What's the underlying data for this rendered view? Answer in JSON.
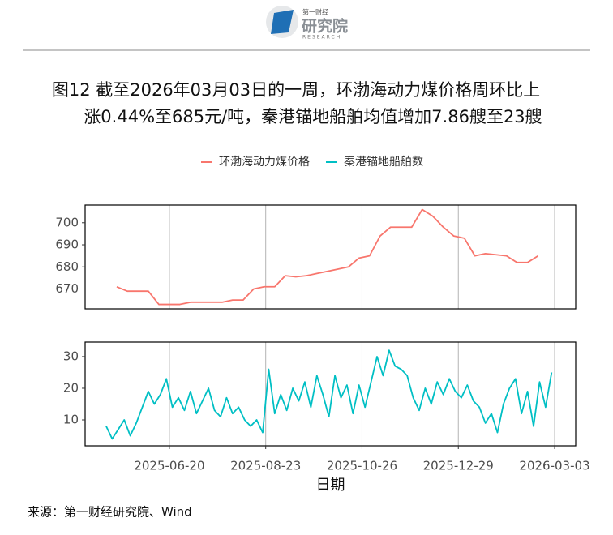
{
  "header": {
    "logo": [
      "第一财经",
      "研究院",
      "RESEARCH"
    ],
    "title": [
      "图12  截至2026年03月03日的一周，环渤海动力煤价格周环比上",
      "涨0.44%至685元/吨，秦港锚地船舶均值增加7.86艘至23艘"
    ]
  },
  "chart_data": [
    {
      "type": "line",
      "x": [
        "2025-05-16",
        "2025-05-23",
        "2025-05-30",
        "2025-06-06",
        "2025-06-13",
        "2025-06-20",
        "2025-06-27",
        "2025-07-04",
        "2025-07-11",
        "2025-07-18",
        "2025-07-25",
        "2025-08-01",
        "2025-08-08",
        "2025-08-15",
        "2025-08-22",
        "2025-08-29",
        "2025-09-05",
        "2025-09-12",
        "2025-09-19",
        "2025-09-26",
        "2025-10-03",
        "2025-10-10",
        "2025-10-17",
        "2025-10-24",
        "2025-10-31",
        "2025-11-07",
        "2025-11-14",
        "2025-11-21",
        "2025-11-28",
        "2025-12-05",
        "2025-12-12",
        "2025-12-19",
        "2025-12-26",
        "2026-01-02",
        "2026-01-09",
        "2026-01-16",
        "2026-01-23",
        "2026-01-30",
        "2026-02-06",
        "2026-02-13",
        "2026-02-20"
      ],
      "series": [
        {
          "name": "环渤海动力煤价格",
          "color": "#F8766D",
          "values": [
            671,
            669,
            669,
            669,
            663,
            663,
            663,
            664,
            664,
            664,
            664,
            665,
            665,
            670,
            671,
            671,
            676,
            675.5,
            676,
            677,
            678,
            679,
            680,
            684,
            685,
            694,
            698,
            698,
            698,
            706,
            703,
            698,
            694,
            693,
            685,
            686,
            685.5,
            685,
            682,
            682,
            685
          ]
        }
      ],
      "xlim": [
        "2025-04-25",
        "2026-03-17"
      ],
      "ylim": [
        661,
        708
      ],
      "yticks": [
        670,
        680,
        690,
        700
      ],
      "grid": true
    },
    {
      "type": "line",
      "x": [
        "2025-05-09",
        "2025-05-13",
        "2025-05-17",
        "2025-05-21",
        "2025-05-25",
        "2025-05-29",
        "2025-06-02",
        "2025-06-06",
        "2025-06-10",
        "2025-06-14",
        "2025-06-18",
        "2025-06-22",
        "2025-06-26",
        "2025-06-30",
        "2025-07-04",
        "2025-07-08",
        "2025-07-12",
        "2025-07-16",
        "2025-07-20",
        "2025-07-24",
        "2025-07-28",
        "2025-08-01",
        "2025-08-05",
        "2025-08-09",
        "2025-08-13",
        "2025-08-17",
        "2025-08-21",
        "2025-08-25",
        "2025-08-29",
        "2025-09-02",
        "2025-09-06",
        "2025-09-10",
        "2025-09-14",
        "2025-09-18",
        "2025-09-22",
        "2025-09-26",
        "2025-09-30",
        "2025-10-04",
        "2025-10-08",
        "2025-10-12",
        "2025-10-16",
        "2025-10-20",
        "2025-10-24",
        "2025-10-28",
        "2025-11-01",
        "2025-11-05",
        "2025-11-09",
        "2025-11-13",
        "2025-11-17",
        "2025-11-21",
        "2025-11-25",
        "2025-11-29",
        "2025-12-03",
        "2025-12-07",
        "2025-12-11",
        "2025-12-15",
        "2025-12-19",
        "2025-12-23",
        "2025-12-27",
        "2025-12-31",
        "2026-01-04",
        "2026-01-08",
        "2026-01-12",
        "2026-01-16",
        "2026-01-20",
        "2026-01-24",
        "2026-01-28",
        "2026-02-01",
        "2026-02-05",
        "2026-02-09",
        "2026-02-13",
        "2026-02-17",
        "2026-02-21",
        "2026-02-25",
        "2026-03-01"
      ],
      "series": [
        {
          "name": "秦港锚地船舶数",
          "color": "#00BFC4",
          "values": [
            8,
            4,
            7,
            10,
            5,
            9,
            14,
            19,
            15,
            18,
            23,
            14,
            17,
            13,
            19,
            12,
            16,
            20,
            13,
            11,
            17,
            12,
            14,
            10,
            8,
            10,
            6,
            26,
            12,
            18,
            13,
            20,
            16,
            22,
            14,
            24,
            18,
            11,
            24,
            17,
            21,
            12,
            21,
            14,
            22,
            30,
            24,
            32,
            27,
            26,
            24,
            17,
            13,
            20,
            15,
            22,
            18,
            23,
            19,
            17,
            21,
            16,
            14,
            9,
            12,
            6,
            15,
            20,
            23,
            12,
            19,
            8,
            22,
            14,
            25
          ]
        }
      ],
      "xlim": [
        "2025-04-25",
        "2026-03-17"
      ],
      "xticks": [
        "2025-06-20",
        "2025-08-23",
        "2025-10-26",
        "2025-12-29",
        "2026-03-03"
      ],
      "xlabel": "日期",
      "ylim": [
        1.8,
        34.6
      ],
      "yticks": [
        10,
        20,
        30
      ],
      "grid": true
    }
  ],
  "source": "来源：第一财经研究院、Wind"
}
